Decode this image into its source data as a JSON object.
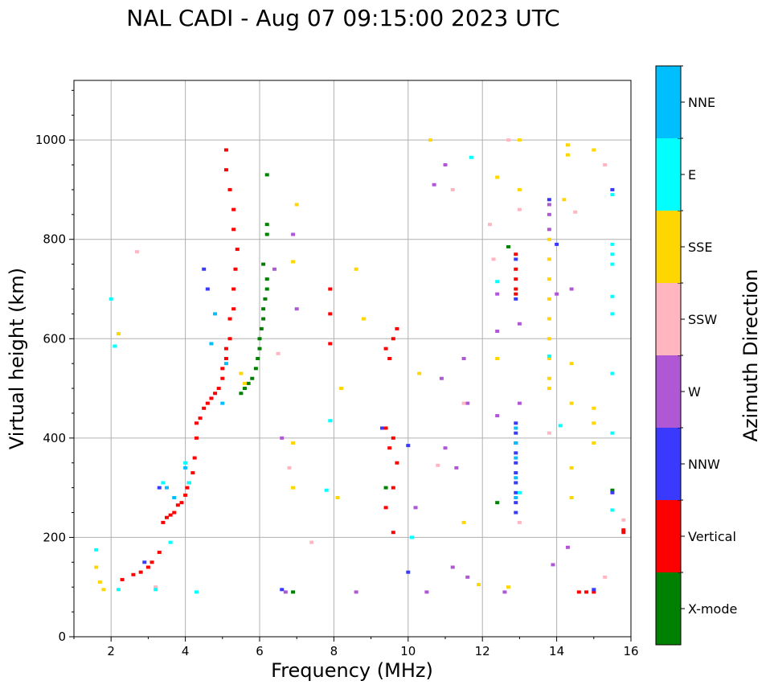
{
  "chart_data": {
    "type": "scatter",
    "title": "NAL CADI - Aug 07 09:15:00 2023 UTC",
    "xlabel": "Frequency (MHz)",
    "ylabel": "Virtual height (km)",
    "xlim": [
      1,
      16
    ],
    "ylim": [
      0,
      1120
    ],
    "xticks": [
      2,
      4,
      6,
      8,
      10,
      12,
      14,
      16
    ],
    "yticks": [
      0,
      200,
      400,
      600,
      800,
      1000
    ],
    "grid": true,
    "colorbar": {
      "label": "Azimuth Direction",
      "categories": [
        {
          "name": "X-mode",
          "color": "#008000"
        },
        {
          "name": "Vertical",
          "color": "#ff0000"
        },
        {
          "name": "NNW",
          "color": "#3a3aff"
        },
        {
          "name": "W",
          "color": "#b057d6"
        },
        {
          "name": "SSW",
          "color": "#ffb6c1"
        },
        {
          "name": "SSE",
          "color": "#ffd700"
        },
        {
          "name": "E",
          "color": "#00ffff"
        },
        {
          "name": "NNE",
          "color": "#00bfff"
        }
      ]
    },
    "series": [
      {
        "name": "Vertical",
        "points": [
          [
            2.3,
            115
          ],
          [
            2.6,
            125
          ],
          [
            2.8,
            130
          ],
          [
            3.0,
            140
          ],
          [
            3.1,
            150
          ],
          [
            3.3,
            170
          ],
          [
            3.4,
            230
          ],
          [
            3.5,
            240
          ],
          [
            3.6,
            245
          ],
          [
            3.7,
            250
          ],
          [
            3.8,
            265
          ],
          [
            3.9,
            270
          ],
          [
            4.0,
            285
          ],
          [
            4.05,
            300
          ],
          [
            4.1,
            310
          ],
          [
            4.2,
            330
          ],
          [
            4.25,
            360
          ],
          [
            4.3,
            400
          ],
          [
            4.3,
            430
          ],
          [
            4.4,
            440
          ],
          [
            4.5,
            460
          ],
          [
            4.6,
            470
          ],
          [
            4.7,
            480
          ],
          [
            4.8,
            490
          ],
          [
            4.9,
            500
          ],
          [
            5.0,
            520
          ],
          [
            5.0,
            540
          ],
          [
            5.1,
            560
          ],
          [
            5.1,
            580
          ],
          [
            5.2,
            600
          ],
          [
            5.2,
            640
          ],
          [
            5.3,
            660
          ],
          [
            5.3,
            700
          ],
          [
            5.35,
            740
          ],
          [
            5.4,
            780
          ],
          [
            5.3,
            820
          ],
          [
            5.3,
            860
          ],
          [
            5.2,
            900
          ],
          [
            5.1,
            940
          ],
          [
            5.1,
            980
          ],
          [
            9.4,
            420
          ],
          [
            9.6,
            400
          ],
          [
            9.5,
            380
          ],
          [
            9.7,
            350
          ],
          [
            9.6,
            300
          ],
          [
            9.4,
            260
          ],
          [
            9.6,
            210
          ],
          [
            9.5,
            560
          ],
          [
            9.6,
            600
          ],
          [
            9.7,
            620
          ],
          [
            9.4,
            580
          ],
          [
            12.9,
            770
          ],
          [
            12.9,
            740
          ],
          [
            12.9,
            720
          ],
          [
            12.9,
            700
          ],
          [
            12.9,
            690
          ],
          [
            15.8,
            215
          ],
          [
            15.8,
            210
          ],
          [
            14.6,
            90
          ],
          [
            14.8,
            90
          ],
          [
            15.0,
            90
          ],
          [
            7.9,
            590
          ],
          [
            7.9,
            650
          ],
          [
            7.9,
            700
          ]
        ]
      },
      {
        "name": "X-mode",
        "points": [
          [
            5.5,
            490
          ],
          [
            5.6,
            500
          ],
          [
            5.7,
            510
          ],
          [
            5.8,
            520
          ],
          [
            5.9,
            540
          ],
          [
            5.95,
            560
          ],
          [
            6.0,
            580
          ],
          [
            6.0,
            600
          ],
          [
            6.05,
            620
          ],
          [
            6.1,
            640
          ],
          [
            6.1,
            660
          ],
          [
            6.15,
            680
          ],
          [
            6.2,
            700
          ],
          [
            6.2,
            720
          ],
          [
            6.1,
            750
          ],
          [
            6.2,
            810
          ],
          [
            6.2,
            830
          ],
          [
            6.2,
            930
          ],
          [
            15.5,
            295
          ],
          [
            12.4,
            270
          ],
          [
            6.9,
            90
          ],
          [
            9.4,
            300
          ],
          [
            12.7,
            785
          ]
        ]
      },
      {
        "name": "NNW",
        "points": [
          [
            12.9,
            430
          ],
          [
            12.9,
            410
          ],
          [
            12.9,
            390
          ],
          [
            12.9,
            370
          ],
          [
            12.9,
            350
          ],
          [
            12.9,
            330
          ],
          [
            12.9,
            310
          ],
          [
            12.9,
            290
          ],
          [
            12.9,
            270
          ],
          [
            12.9,
            250
          ],
          [
            12.9,
            760
          ],
          [
            12.9,
            680
          ],
          [
            15.5,
            900
          ],
          [
            15.5,
            290
          ],
          [
            15.0,
            95
          ],
          [
            14.0,
            790
          ],
          [
            13.8,
            880
          ],
          [
            9.3,
            420
          ],
          [
            10.0,
            385
          ],
          [
            10.0,
            130
          ],
          [
            4.5,
            740
          ],
          [
            4.6,
            700
          ],
          [
            3.3,
            300
          ],
          [
            2.9,
            150
          ],
          [
            6.6,
            95
          ]
        ]
      },
      {
        "name": "W",
        "points": [
          [
            13.8,
            870
          ],
          [
            13.8,
            850
          ],
          [
            13.8,
            820
          ],
          [
            14.4,
            700
          ],
          [
            14.0,
            690
          ],
          [
            12.4,
            690
          ],
          [
            12.4,
            615
          ],
          [
            13.0,
            630
          ],
          [
            13.0,
            470
          ],
          [
            12.4,
            445
          ],
          [
            11.0,
            950
          ],
          [
            10.9,
            520
          ],
          [
            11.0,
            380
          ],
          [
            11.3,
            340
          ],
          [
            10.5,
            90
          ],
          [
            11.2,
            140
          ],
          [
            11.6,
            120
          ],
          [
            8.6,
            90
          ],
          [
            6.6,
            400
          ],
          [
            6.7,
            90
          ],
          [
            6.4,
            740
          ],
          [
            6.9,
            810
          ],
          [
            7.0,
            660
          ],
          [
            12.6,
            90
          ],
          [
            14.3,
            180
          ],
          [
            13.9,
            145
          ],
          [
            10.7,
            910
          ],
          [
            11.5,
            560
          ],
          [
            11.6,
            470
          ],
          [
            10.2,
            260
          ]
        ]
      },
      {
        "name": "SSW",
        "points": [
          [
            15.8,
            235
          ],
          [
            15.3,
            950
          ],
          [
            15.3,
            120
          ],
          [
            12.7,
            1000
          ],
          [
            13.0,
            860
          ],
          [
            12.2,
            830
          ],
          [
            12.3,
            760
          ],
          [
            13.8,
            410
          ],
          [
            11.2,
            900
          ],
          [
            11.5,
            470
          ],
          [
            10.8,
            345
          ],
          [
            6.8,
            340
          ],
          [
            6.5,
            570
          ],
          [
            7.4,
            190
          ],
          [
            2.7,
            775
          ],
          [
            3.2,
            100
          ],
          [
            13.0,
            230
          ],
          [
            14.5,
            855
          ]
        ]
      },
      {
        "name": "SSE",
        "points": [
          [
            13.8,
            800
          ],
          [
            13.8,
            760
          ],
          [
            13.8,
            720
          ],
          [
            13.8,
            680
          ],
          [
            13.8,
            640
          ],
          [
            13.8,
            600
          ],
          [
            13.8,
            560
          ],
          [
            13.8,
            520
          ],
          [
            15.0,
            460
          ],
          [
            15.0,
            430
          ],
          [
            15.0,
            390
          ],
          [
            14.4,
            550
          ],
          [
            14.4,
            470
          ],
          [
            14.4,
            340
          ],
          [
            14.4,
            280
          ],
          [
            14.3,
            990
          ],
          [
            14.3,
            970
          ],
          [
            15.0,
            980
          ],
          [
            14.2,
            880
          ],
          [
            12.4,
            560
          ],
          [
            12.4,
            925
          ],
          [
            13.0,
            1000
          ],
          [
            13.0,
            900
          ],
          [
            11.5,
            230
          ],
          [
            11.9,
            105
          ],
          [
            12.7,
            100
          ],
          [
            10.3,
            530
          ],
          [
            10.6,
            1000
          ],
          [
            8.2,
            500
          ],
          [
            8.1,
            280
          ],
          [
            8.6,
            740
          ],
          [
            8.8,
            640
          ],
          [
            7.0,
            870
          ],
          [
            6.9,
            755
          ],
          [
            6.9,
            390
          ],
          [
            6.9,
            300
          ],
          [
            1.6,
            140
          ],
          [
            1.7,
            110
          ],
          [
            1.8,
            95
          ],
          [
            5.5,
            530
          ],
          [
            5.6,
            510
          ],
          [
            2.2,
            610
          ],
          [
            13.8,
            500
          ]
        ]
      },
      {
        "name": "E",
        "points": [
          [
            15.5,
            890
          ],
          [
            15.5,
            790
          ],
          [
            15.5,
            770
          ],
          [
            15.5,
            750
          ],
          [
            15.5,
            685
          ],
          [
            15.5,
            650
          ],
          [
            15.5,
            530
          ],
          [
            15.5,
            410
          ],
          [
            15.5,
            255
          ],
          [
            14.1,
            425
          ],
          [
            13.8,
            565
          ],
          [
            12.4,
            715
          ],
          [
            11.7,
            965
          ],
          [
            7.8,
            295
          ],
          [
            7.9,
            435
          ],
          [
            4.0,
            350
          ],
          [
            4.1,
            310
          ],
          [
            3.4,
            310
          ],
          [
            3.6,
            190
          ],
          [
            3.2,
            95
          ],
          [
            2.2,
            95
          ],
          [
            2.1,
            585
          ],
          [
            2.0,
            680
          ],
          [
            4.3,
            90
          ],
          [
            1.6,
            175
          ],
          [
            10.1,
            200
          ],
          [
            13.0,
            290
          ]
        ]
      },
      {
        "name": "NNE",
        "points": [
          [
            12.9,
            420
          ],
          [
            12.9,
            390
          ],
          [
            12.9,
            360
          ],
          [
            12.9,
            320
          ],
          [
            12.9,
            280
          ],
          [
            3.5,
            300
          ],
          [
            3.7,
            280
          ],
          [
            4.0,
            340
          ],
          [
            4.7,
            590
          ],
          [
            4.8,
            650
          ],
          [
            5.0,
            470
          ],
          [
            5.1,
            550
          ]
        ]
      }
    ]
  }
}
